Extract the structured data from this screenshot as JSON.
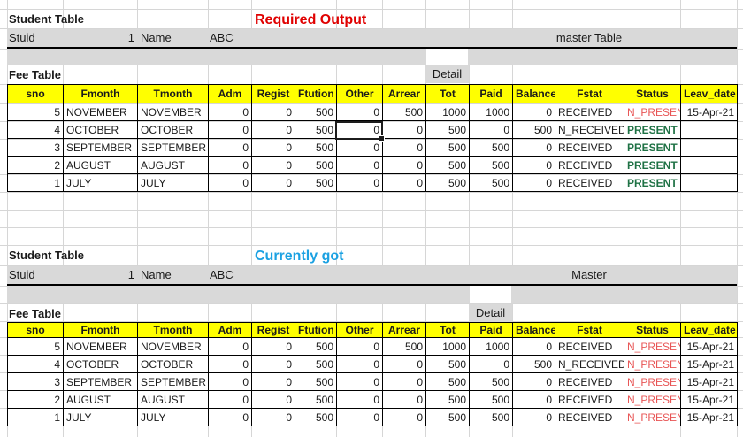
{
  "colors": {
    "present": "#1f7245",
    "n_present": "#e85555",
    "header_yellow": "#ffff00",
    "band_gray": "#d9d9d9",
    "grid": "#d6d6d6"
  },
  "columns": [
    {
      "key": "sno",
      "label": "sno"
    },
    {
      "key": "fmonth",
      "label": "Fmonth"
    },
    {
      "key": "tmonth",
      "label": "Tmonth"
    },
    {
      "key": "adm",
      "label": "Adm"
    },
    {
      "key": "regist",
      "label": "Regist"
    },
    {
      "key": "ftution",
      "label": "Ftution"
    },
    {
      "key": "other",
      "label": "Other"
    },
    {
      "key": "arrear",
      "label": "Arrear"
    },
    {
      "key": "tot",
      "label": "Tot"
    },
    {
      "key": "paid",
      "label": "Paid"
    },
    {
      "key": "balance",
      "label": "Balance"
    },
    {
      "key": "fstat",
      "label": "Fstat"
    },
    {
      "key": "status",
      "label": "Status"
    },
    {
      "key": "leav_date",
      "label": "Leav_date"
    }
  ],
  "sections": [
    {
      "student_table_label": "Student Table",
      "title": "Required Output",
      "title_color": "#e00000",
      "stuid_label": "Stuid",
      "stuid_value": "1",
      "name_label": "Name",
      "name_value": "ABC",
      "master_label": "master Table",
      "fee_table_label": "Fee Table",
      "detail_label": "Detail",
      "detail_over_column": "tot",
      "rows": [
        {
          "sno": "5",
          "fmonth": "NOVEMBER",
          "tmonth": "NOVEMBER",
          "adm": "0",
          "regist": "0",
          "ftution": "500",
          "other": "0",
          "arrear": "500",
          "tot": "1000",
          "paid": "1000",
          "balance": "0",
          "fstat": "RECEIVED",
          "status": "N_PRESENT",
          "status_variant": "n_present",
          "leav_date": "15-Apr-21"
        },
        {
          "sno": "4",
          "fmonth": "OCTOBER",
          "tmonth": "OCTOBER",
          "adm": "0",
          "regist": "0",
          "ftution": "500",
          "other": "0",
          "arrear": "0",
          "tot": "500",
          "paid": "0",
          "balance": "500",
          "fstat": "N_RECEIVED",
          "status": "PRESENT",
          "status_variant": "present",
          "leav_date": ""
        },
        {
          "sno": "3",
          "fmonth": "SEPTEMBER",
          "tmonth": "SEPTEMBER",
          "adm": "0",
          "regist": "0",
          "ftution": "500",
          "other": "0",
          "arrear": "0",
          "tot": "500",
          "paid": "500",
          "balance": "0",
          "fstat": "RECEIVED",
          "status": "PRESENT",
          "status_variant": "present",
          "leav_date": ""
        },
        {
          "sno": "2",
          "fmonth": "AUGUST",
          "tmonth": "AUGUST",
          "adm": "0",
          "regist": "0",
          "ftution": "500",
          "other": "0",
          "arrear": "0",
          "tot": "500",
          "paid": "500",
          "balance": "0",
          "fstat": "RECEIVED",
          "status": "PRESENT",
          "status_variant": "present",
          "leav_date": ""
        },
        {
          "sno": "1",
          "fmonth": "JULY",
          "tmonth": "JULY",
          "adm": "0",
          "regist": "0",
          "ftution": "500",
          "other": "0",
          "arrear": "0",
          "tot": "500",
          "paid": "500",
          "balance": "0",
          "fstat": "RECEIVED",
          "status": "PRESENT",
          "status_variant": "present",
          "leav_date": ""
        }
      ]
    },
    {
      "student_table_label": "Student Table",
      "title": "Currently got",
      "title_color": "#1ba1e2",
      "stuid_label": "Stuid",
      "stuid_value": "1",
      "name_label": "Name",
      "name_value": "ABC",
      "master_label": "Master",
      "fee_table_label": "Fee Table",
      "detail_label": "Detail",
      "detail_over_column": "paid",
      "rows": [
        {
          "sno": "5",
          "fmonth": "NOVEMBER",
          "tmonth": "NOVEMBER",
          "adm": "0",
          "regist": "0",
          "ftution": "500",
          "other": "0",
          "arrear": "500",
          "tot": "1000",
          "paid": "1000",
          "balance": "0",
          "fstat": "RECEIVED",
          "status": "N_PRESENT",
          "status_variant": "n_present",
          "leav_date": "15-Apr-21"
        },
        {
          "sno": "4",
          "fmonth": "OCTOBER",
          "tmonth": "OCTOBER",
          "adm": "0",
          "regist": "0",
          "ftution": "500",
          "other": "0",
          "arrear": "0",
          "tot": "500",
          "paid": "0",
          "balance": "500",
          "fstat": "N_RECEIVED",
          "status": "N_PRESENT",
          "status_variant": "n_present",
          "leav_date": "15-Apr-21"
        },
        {
          "sno": "3",
          "fmonth": "SEPTEMBER",
          "tmonth": "SEPTEMBER",
          "adm": "0",
          "regist": "0",
          "ftution": "500",
          "other": "0",
          "arrear": "0",
          "tot": "500",
          "paid": "500",
          "balance": "0",
          "fstat": "RECEIVED",
          "status": "N_PRESENT",
          "status_variant": "n_present",
          "leav_date": "15-Apr-21"
        },
        {
          "sno": "2",
          "fmonth": "AUGUST",
          "tmonth": "AUGUST",
          "adm": "0",
          "regist": "0",
          "ftution": "500",
          "other": "0",
          "arrear": "0",
          "tot": "500",
          "paid": "500",
          "balance": "0",
          "fstat": "RECEIVED",
          "status": "N_PRESENT",
          "status_variant": "n_present",
          "leav_date": "15-Apr-21"
        },
        {
          "sno": "1",
          "fmonth": "JULY",
          "tmonth": "JULY",
          "adm": "0",
          "regist": "0",
          "ftution": "500",
          "other": "0",
          "arrear": "0",
          "tot": "500",
          "paid": "500",
          "balance": "0",
          "fstat": "RECEIVED",
          "status": "N_PRESENT",
          "status_variant": "n_present",
          "leav_date": "15-Apr-21"
        }
      ]
    }
  ],
  "selection": {
    "section_index": 0,
    "row_index": 1,
    "column_key": "other"
  }
}
